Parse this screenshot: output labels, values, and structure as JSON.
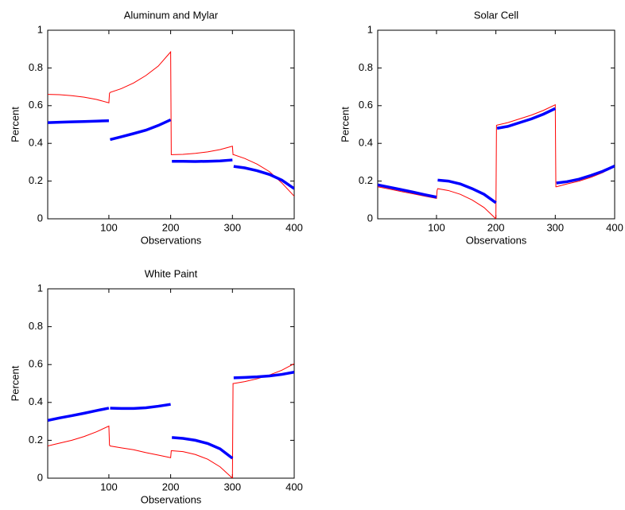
{
  "chart_data": [
    {
      "type": "line",
      "title": "Aluminum and Mylar",
      "xlabel": "Observations",
      "ylabel": "Percent",
      "x": [
        1,
        20,
        40,
        60,
        80,
        100,
        101,
        102,
        120,
        140,
        160,
        180,
        200,
        201,
        202,
        220,
        240,
        260,
        280,
        300,
        301,
        302,
        320,
        340,
        360,
        380,
        400
      ],
      "series": [
        {
          "color": "#ff0000",
          "values": [
            0.66,
            0.658,
            0.653,
            0.645,
            0.633,
            0.615,
            0.665,
            0.67,
            0.69,
            0.72,
            0.76,
            0.81,
            0.885,
            0.34,
            0.34,
            0.342,
            0.347,
            0.355,
            0.367,
            0.385,
            0.34,
            0.34,
            0.32,
            0.29,
            0.25,
            0.19,
            0.12
          ]
        },
        {
          "color": "#0000ff",
          "values": [
            0.51,
            0.512,
            0.514,
            0.516,
            0.518,
            0.52,
            null,
            0.42,
            0.435,
            0.452,
            0.47,
            0.495,
            0.525,
            null,
            0.305,
            0.305,
            0.304,
            0.305,
            0.307,
            0.312,
            null,
            0.278,
            0.27,
            0.255,
            0.235,
            0.205,
            0.16
          ]
        }
      ],
      "xlim": [
        1,
        400
      ],
      "xticks": [
        100,
        200,
        300,
        400
      ],
      "ylim": [
        0,
        1
      ],
      "yticks": [
        0,
        0.2,
        0.4,
        0.6,
        0.8,
        1
      ]
    },
    {
      "type": "line",
      "title": "Solar Cell",
      "xlabel": "Observations",
      "ylabel": "Percent",
      "x": [
        1,
        20,
        40,
        60,
        80,
        100,
        101,
        102,
        120,
        140,
        160,
        180,
        200,
        201,
        202,
        220,
        240,
        260,
        280,
        300,
        301,
        302,
        320,
        340,
        360,
        380,
        400
      ],
      "series": [
        {
          "color": "#ff0000",
          "values": [
            0.17,
            0.158,
            0.145,
            0.133,
            0.12,
            0.108,
            0.15,
            0.16,
            0.15,
            0.13,
            0.1,
            0.06,
            0.0,
            0.495,
            0.497,
            0.51,
            0.53,
            0.55,
            0.575,
            0.605,
            0.17,
            0.17,
            0.185,
            0.2,
            0.22,
            0.245,
            0.28
          ]
        },
        {
          "color": "#0000ff",
          "values": [
            0.18,
            0.168,
            0.155,
            0.142,
            0.128,
            0.115,
            null,
            0.205,
            0.2,
            0.185,
            0.16,
            0.13,
            0.085,
            null,
            0.48,
            0.49,
            0.51,
            0.53,
            0.555,
            0.585,
            null,
            0.19,
            0.197,
            0.21,
            0.23,
            0.252,
            0.28
          ]
        }
      ],
      "xlim": [
        1,
        400
      ],
      "xticks": [
        100,
        200,
        300,
        400
      ],
      "ylim": [
        0,
        1
      ],
      "yticks": [
        0,
        0.2,
        0.4,
        0.6,
        0.8,
        1
      ]
    },
    {
      "type": "line",
      "title": "White Paint",
      "xlabel": "Observations",
      "ylabel": "Percent",
      "x": [
        1,
        20,
        40,
        60,
        80,
        100,
        101,
        102,
        120,
        140,
        160,
        180,
        200,
        201,
        202,
        220,
        240,
        260,
        280,
        300,
        301,
        302,
        320,
        340,
        360,
        380,
        400
      ],
      "series": [
        {
          "color": "#ff0000",
          "values": [
            0.17,
            0.185,
            0.2,
            0.22,
            0.245,
            0.275,
            0.175,
            0.17,
            0.16,
            0.15,
            0.135,
            0.122,
            0.108,
            0.145,
            0.145,
            0.14,
            0.125,
            0.1,
            0.06,
            0.0,
            0.5,
            0.5,
            0.51,
            0.525,
            0.545,
            0.57,
            0.605
          ]
        },
        {
          "color": "#0000ff",
          "values": [
            0.305,
            0.318,
            0.33,
            0.343,
            0.357,
            0.37,
            null,
            0.37,
            0.368,
            0.368,
            0.372,
            0.38,
            0.39,
            null,
            0.215,
            0.21,
            0.2,
            0.183,
            0.155,
            0.105,
            null,
            0.53,
            0.532,
            0.535,
            0.54,
            0.548,
            0.56
          ]
        }
      ],
      "xlim": [
        1,
        400
      ],
      "xticks": [
        100,
        200,
        300,
        400
      ],
      "ylim": [
        0,
        1
      ],
      "yticks": [
        0,
        0.2,
        0.4,
        0.6,
        0.8,
        1
      ]
    }
  ]
}
